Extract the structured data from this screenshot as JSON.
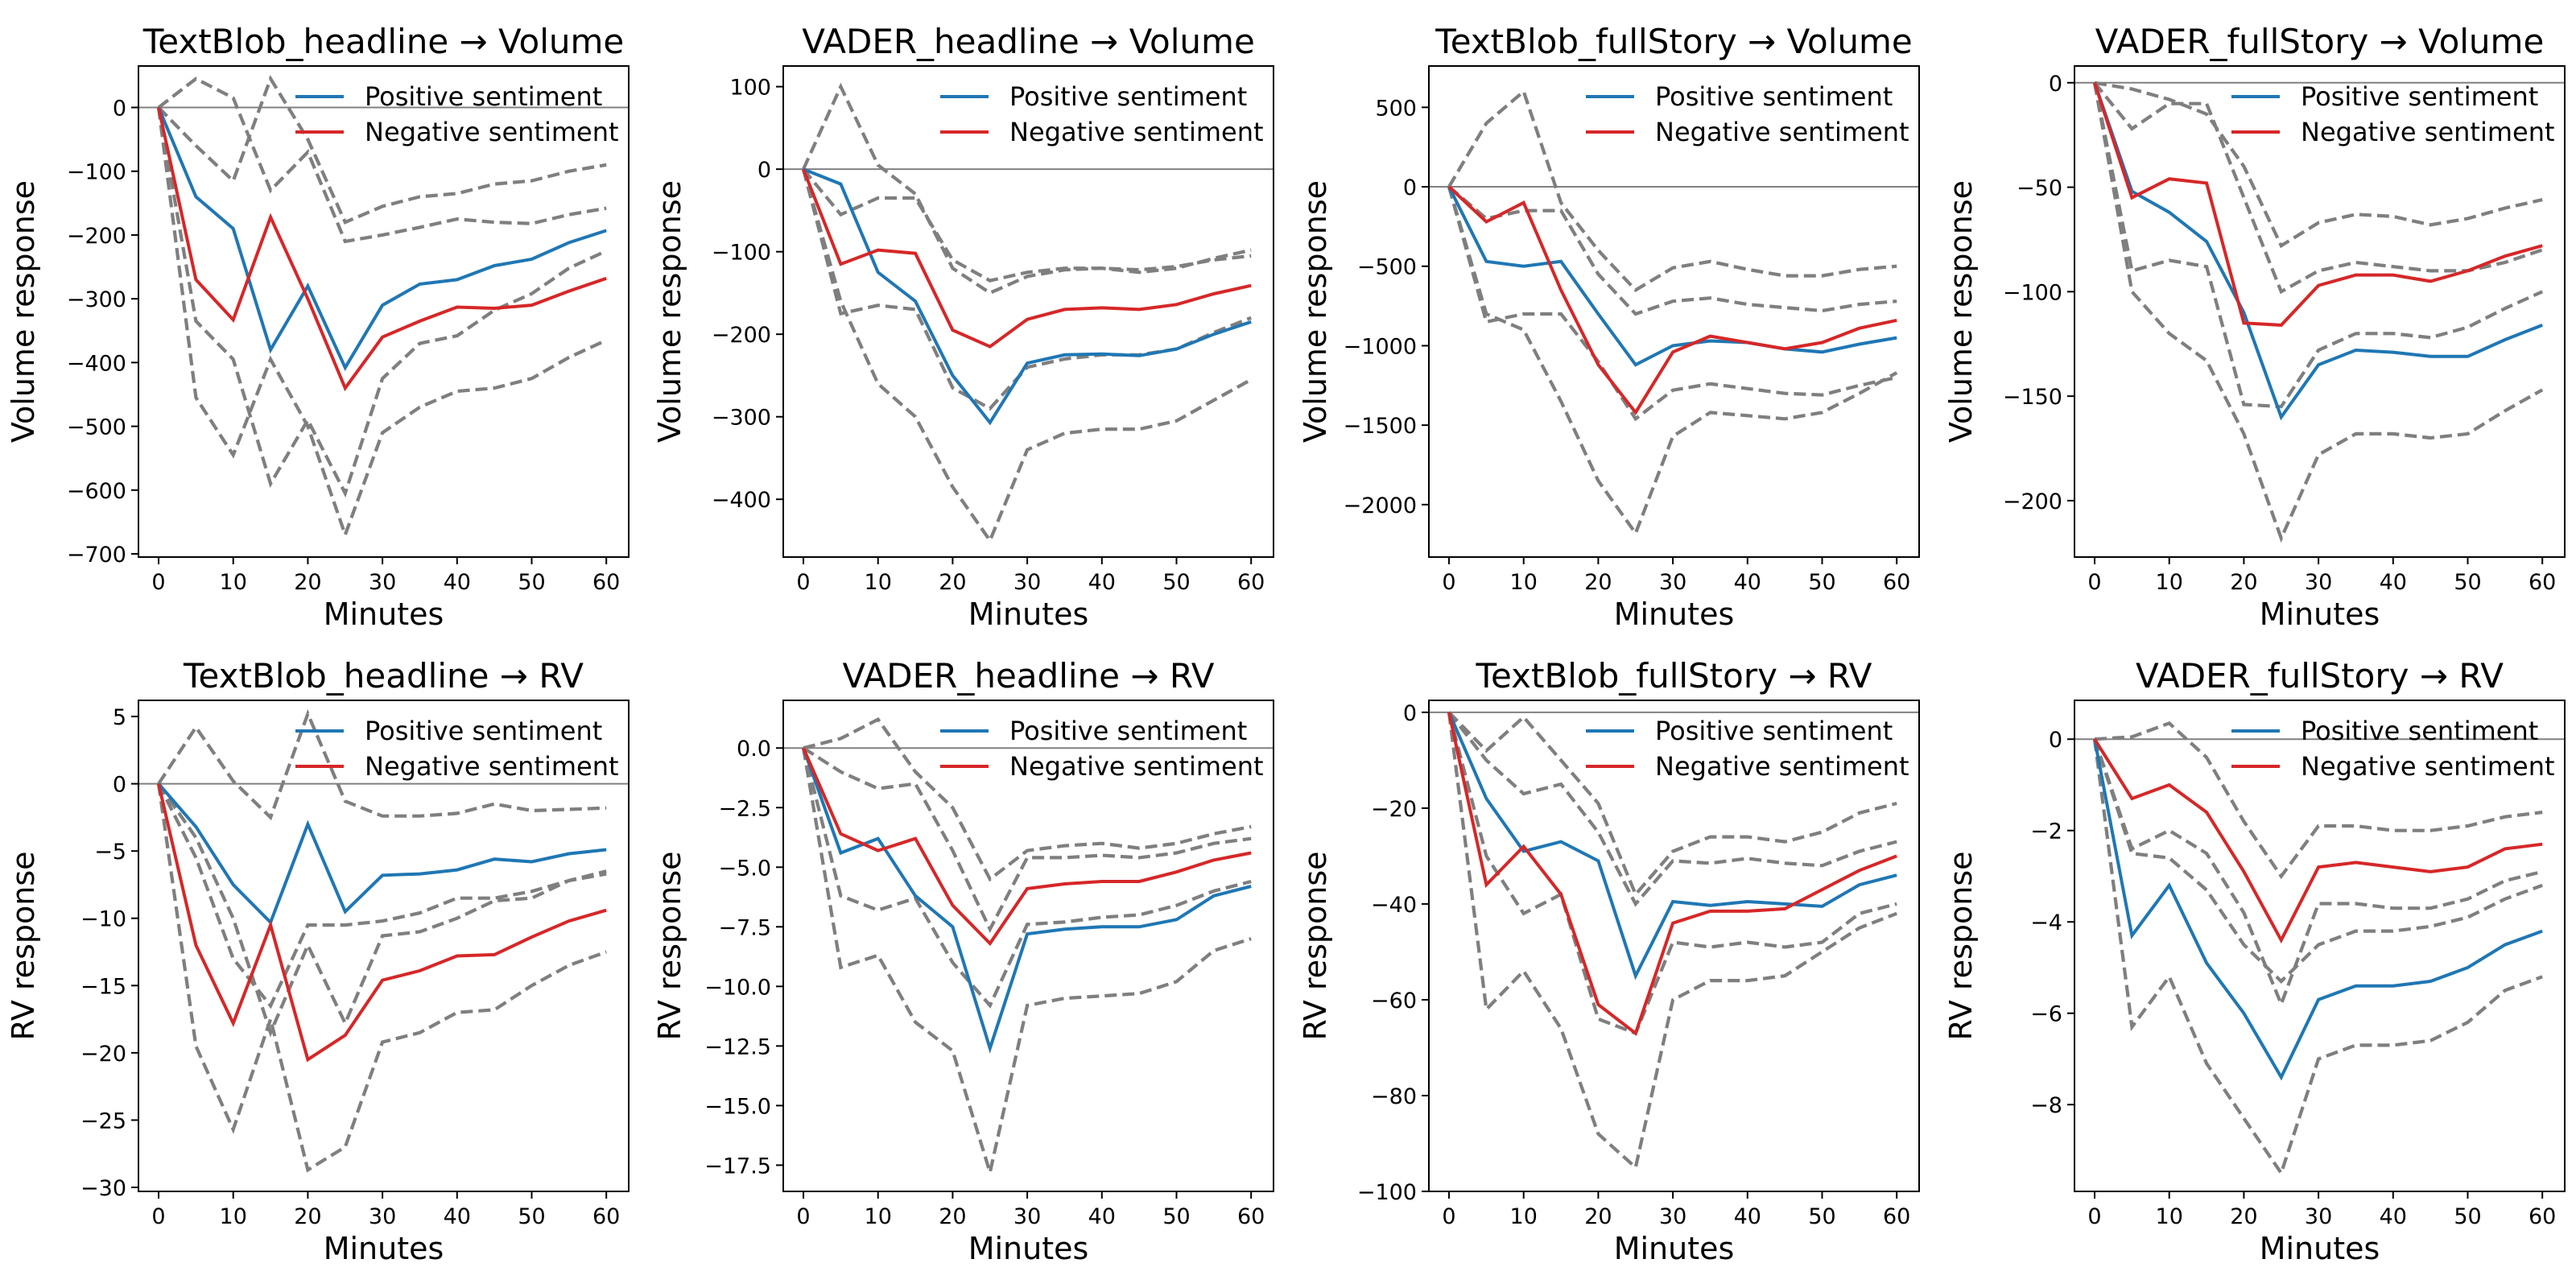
{
  "chart_data": [
    {
      "type": "line",
      "title": "TextBlob_headline → Volume",
      "xlabel": "Minutes",
      "ylabel": "Volume response",
      "xlim": [
        -2.7,
        63
      ],
      "ylim": [
        -705,
        65
      ],
      "xticks": [
        0,
        10,
        20,
        30,
        40,
        50,
        60
      ],
      "yticks": [
        0,
        -100,
        -200,
        -300,
        -400,
        -500,
        -600,
        -700
      ],
      "legend": "top-right",
      "zero_line": true,
      "x": [
        0,
        5,
        10,
        15,
        20,
        25,
        30,
        35,
        40,
        45,
        50,
        55,
        60
      ],
      "series": [
        {
          "name": "Positive sentiment",
          "color": "#1f77b4",
          "values": [
            0,
            -140,
            -190,
            -380,
            -280,
            -408,
            -310,
            -277,
            -270,
            -248,
            -238,
            -212,
            -193
          ]
        },
        {
          "name": "Negative sentiment",
          "color": "#d62728",
          "values": [
            0,
            -270,
            -333,
            -172,
            -300,
            -440,
            -360,
            -335,
            -313,
            -315,
            -310,
            -288,
            -268
          ]
        }
      ],
      "bands": [
        [
          0,
          45,
          15,
          -130,
          -70,
          -210,
          -200,
          -188,
          -175,
          -180,
          -182,
          -168,
          -158
        ],
        [
          0,
          -335,
          -395,
          -590,
          -490,
          -605,
          -425,
          -370,
          -358,
          -318,
          -292,
          -252,
          -225
        ],
        [
          0,
          -60,
          -115,
          45,
          -50,
          -180,
          -155,
          -140,
          -135,
          -120,
          -115,
          -100,
          -90
        ],
        [
          0,
          -455,
          -545,
          -395,
          -500,
          -670,
          -510,
          -470,
          -445,
          -440,
          -425,
          -392,
          -365
        ]
      ]
    },
    {
      "type": "line",
      "title": "VADER_headline → Volume",
      "xlabel": "Minutes",
      "ylabel": "Volume response",
      "xlim": [
        -2.7,
        63
      ],
      "ylim": [
        -470,
        125
      ],
      "xticks": [
        0,
        10,
        20,
        30,
        40,
        50,
        60
      ],
      "yticks": [
        100,
        0,
        -100,
        -200,
        -300,
        -400
      ],
      "legend": "top-right",
      "zero_line": true,
      "x": [
        0,
        5,
        10,
        15,
        20,
        25,
        30,
        35,
        40,
        45,
        50,
        55,
        60
      ],
      "series": [
        {
          "name": "Positive sentiment",
          "color": "#1f77b4",
          "values": [
            0,
            -18,
            -125,
            -160,
            -250,
            -307,
            -235,
            -225,
            -224,
            -226,
            -218,
            -200,
            -185
          ]
        },
        {
          "name": "Negative sentiment",
          "color": "#d62728",
          "values": [
            0,
            -115,
            -98,
            -102,
            -195,
            -215,
            -182,
            -170,
            -168,
            -170,
            -164,
            -151,
            -141
          ]
        }
      ],
      "bands": [
        [
          0,
          100,
          5,
          -30,
          -120,
          -150,
          -130,
          -122,
          -120,
          -125,
          -120,
          -108,
          -98
        ],
        [
          0,
          -55,
          -35,
          -35,
          -110,
          -135,
          -125,
          -120,
          -120,
          -122,
          -118,
          -110,
          -105
        ],
        [
          0,
          -175,
          -165,
          -170,
          -265,
          -290,
          -240,
          -230,
          -225,
          -225,
          -218,
          -198,
          -180
        ],
        [
          0,
          -160,
          -260,
          -300,
          -385,
          -450,
          -340,
          -320,
          -315,
          -315,
          -305,
          -280,
          -255
        ]
      ]
    },
    {
      "type": "line",
      "title": "TextBlob_fullStory → Volume",
      "xlabel": "Minutes",
      "ylabel": "Volume response",
      "xlim": [
        -2.7,
        63
      ],
      "ylim": [
        -2330,
        760
      ],
      "xticks": [
        0,
        10,
        20,
        30,
        40,
        50,
        60
      ],
      "yticks": [
        500,
        0,
        -500,
        -1000,
        -1500,
        -2000
      ],
      "legend": "top-right",
      "zero_line": true,
      "x": [
        0,
        5,
        10,
        15,
        20,
        25,
        30,
        35,
        40,
        45,
        50,
        55,
        60
      ],
      "series": [
        {
          "name": "Positive sentiment",
          "color": "#1f77b4",
          "values": [
            0,
            -470,
            -500,
            -470,
            -800,
            -1120,
            -1000,
            -970,
            -980,
            -1020,
            -1040,
            -990,
            -950
          ]
        },
        {
          "name": "Negative sentiment",
          "color": "#d62728",
          "values": [
            0,
            -220,
            -100,
            -650,
            -1120,
            -1420,
            -1040,
            -940,
            -980,
            -1020,
            -980,
            -890,
            -840
          ]
        }
      ],
      "bands": [
        [
          0,
          400,
          600,
          -100,
          -400,
          -650,
          -510,
          -470,
          -520,
          -560,
          -560,
          -520,
          -500
        ],
        [
          0,
          -200,
          -150,
          -150,
          -550,
          -800,
          -720,
          -700,
          -740,
          -760,
          -780,
          -740,
          -720
        ],
        [
          0,
          -800,
          -900,
          -1350,
          -1850,
          -2180,
          -1570,
          -1420,
          -1440,
          -1460,
          -1420,
          -1300,
          -1170
        ],
        [
          0,
          -850,
          -800,
          -800,
          -1100,
          -1460,
          -1280,
          -1240,
          -1270,
          -1300,
          -1310,
          -1250,
          -1200
        ]
      ]
    },
    {
      "type": "line",
      "title": "VADER_fullStory → Volume",
      "xlabel": "Minutes",
      "ylabel": "Volume response",
      "xlim": [
        -2.7,
        63
      ],
      "ylim": [
        -227,
        8
      ],
      "xticks": [
        0,
        10,
        20,
        30,
        40,
        50,
        60
      ],
      "yticks": [
        0,
        -50,
        -100,
        -150,
        -200
      ],
      "legend": "top-right",
      "zero_line": true,
      "x": [
        0,
        5,
        10,
        15,
        20,
        25,
        30,
        35,
        40,
        45,
        50,
        55,
        60
      ],
      "series": [
        {
          "name": "Positive sentiment",
          "color": "#1f77b4",
          "values": [
            0,
            -52,
            -62,
            -76,
            -110,
            -160,
            -135,
            -128,
            -129,
            -131,
            -131,
            -123,
            -116
          ]
        },
        {
          "name": "Negative sentiment",
          "color": "#d62728",
          "values": [
            0,
            -55,
            -46,
            -48,
            -115,
            -116,
            -97,
            -92,
            -92,
            -95,
            -90,
            -83,
            -78
          ]
        }
      ],
      "bands": [
        [
          0,
          -3,
          -8,
          -15,
          -40,
          -78,
          -67,
          -63,
          -64,
          -68,
          -65,
          -60,
          -56
        ],
        [
          0,
          -22,
          -10,
          -10,
          -55,
          -100,
          -90,
          -86,
          -88,
          -90,
          -90,
          -86,
          -80
        ],
        [
          0,
          -90,
          -85,
          -88,
          -154,
          -155,
          -128,
          -120,
          -120,
          -122,
          -117,
          -108,
          -100
        ],
        [
          0,
          -100,
          -120,
          -133,
          -168,
          -218,
          -178,
          -168,
          -168,
          -170,
          -168,
          -157,
          -147
        ]
      ]
    },
    {
      "type": "line",
      "title": "TextBlob_headline → RV",
      "xlabel": "Minutes",
      "ylabel": "RV response",
      "xlim": [
        -2.7,
        63
      ],
      "ylim": [
        -30.3,
        6.2
      ],
      "xticks": [
        0,
        10,
        20,
        30,
        40,
        50,
        60
      ],
      "yticks": [
        5,
        0,
        -5,
        -10,
        -15,
        -20,
        -25,
        -30
      ],
      "legend": "top-right",
      "zero_line": true,
      "x": [
        0,
        5,
        10,
        15,
        20,
        25,
        30,
        35,
        40,
        45,
        50,
        55,
        60
      ],
      "series": [
        {
          "name": "Positive sentiment",
          "color": "#1f77b4",
          "values": [
            0,
            -3.2,
            -7.5,
            -10.3,
            -3.0,
            -9.5,
            -6.8,
            -6.7,
            -6.4,
            -5.6,
            -5.8,
            -5.2,
            -4.9
          ]
        },
        {
          "name": "Negative sentiment",
          "color": "#d62728",
          "values": [
            0,
            -12,
            -17.8,
            -10.5,
            -20.5,
            -18.7,
            -14.6,
            -13.9,
            -12.8,
            -12.7,
            -11.4,
            -10.2,
            -9.4
          ]
        }
      ],
      "bands": [
        [
          0,
          4.2,
          0.2,
          -2.5,
          5.2,
          -1.3,
          -2.4,
          -2.4,
          -2.2,
          -1.5,
          -2.0,
          -1.9,
          -1.8
        ],
        [
          0,
          -4.0,
          -10.0,
          -18.5,
          -12.0,
          -17.8,
          -11.3,
          -11.0,
          -10.0,
          -8.7,
          -8.5,
          -7.2,
          -6.5
        ],
        [
          0,
          -5.5,
          -13.0,
          -16.5,
          -10.5,
          -10.5,
          -10.2,
          -9.6,
          -8.5,
          -8.5,
          -8.0,
          -7.2,
          -6.7
        ],
        [
          0,
          -19.5,
          -25.7,
          -17.5,
          -28.7,
          -27.0,
          -19.2,
          -18.5,
          -17.0,
          -16.8,
          -15.0,
          -13.5,
          -12.5
        ]
      ]
    },
    {
      "type": "line",
      "title": "VADER_headline → RV",
      "xlabel": "Minutes",
      "ylabel": "RV response",
      "xlim": [
        -2.7,
        63
      ],
      "ylim": [
        -18.6,
        2.0
      ],
      "xticks": [
        0,
        10,
        20,
        30,
        40,
        50,
        60
      ],
      "yticks": [
        0.0,
        -2.5,
        -5.0,
        -7.5,
        -10.0,
        -12.5,
        -15.0,
        -17.5
      ],
      "legend": "top-right",
      "zero_line": true,
      "x": [
        0,
        5,
        10,
        15,
        20,
        25,
        30,
        35,
        40,
        45,
        50,
        55,
        60
      ],
      "series": [
        {
          "name": "Positive sentiment",
          "color": "#1f77b4",
          "values": [
            0,
            -4.4,
            -3.8,
            -6.2,
            -7.5,
            -12.6,
            -7.8,
            -7.6,
            -7.5,
            -7.5,
            -7.2,
            -6.2,
            -5.8
          ]
        },
        {
          "name": "Negative sentiment",
          "color": "#d62728",
          "values": [
            0,
            -3.6,
            -4.3,
            -3.8,
            -6.6,
            -8.2,
            -5.9,
            -5.7,
            -5.6,
            -5.6,
            -5.2,
            -4.7,
            -4.4
          ]
        }
      ],
      "bands": [
        [
          0,
          0.4,
          1.2,
          -1.0,
          -2.5,
          -5.5,
          -4.3,
          -4.1,
          -4.0,
          -4.2,
          -4.0,
          -3.6,
          -3.3
        ],
        [
          0,
          -1.0,
          -1.7,
          -1.5,
          -4.3,
          -7.6,
          -4.6,
          -4.6,
          -4.5,
          -4.6,
          -4.4,
          -4.0,
          -3.8
        ],
        [
          0,
          -6.2,
          -6.8,
          -6.3,
          -9.0,
          -10.8,
          -7.4,
          -7.3,
          -7.1,
          -7.0,
          -6.6,
          -6.0,
          -5.6
        ],
        [
          0,
          -9.2,
          -8.7,
          -11.5,
          -12.7,
          -17.8,
          -10.8,
          -10.5,
          -10.4,
          -10.3,
          -9.8,
          -8.5,
          -8.0
        ]
      ]
    },
    {
      "type": "line",
      "title": "TextBlob_fullStory → RV",
      "xlabel": "Minutes",
      "ylabel": "RV response",
      "xlim": [
        -2.7,
        63
      ],
      "ylim": [
        -100,
        2.5
      ],
      "xticks": [
        0,
        10,
        20,
        30,
        40,
        50,
        60
      ],
      "yticks": [
        0,
        -20,
        -40,
        -60,
        -80,
        -100
      ],
      "legend": "top-right",
      "zero_line": true,
      "x": [
        0,
        5,
        10,
        15,
        20,
        25,
        30,
        35,
        40,
        45,
        50,
        55,
        60
      ],
      "series": [
        {
          "name": "Positive sentiment",
          "color": "#1f77b4",
          "values": [
            0,
            -18,
            -29,
            -27,
            -31,
            -55,
            -39.5,
            -40.3,
            -39.5,
            -40,
            -40.5,
            -36,
            -34
          ]
        },
        {
          "name": "Negative sentiment",
          "color": "#d62728",
          "values": [
            0,
            -36,
            -28,
            -38,
            -61,
            -67,
            -44,
            -41.5,
            -41.5,
            -41,
            -37,
            -33,
            -30
          ]
        }
      ],
      "bands": [
        [
          0,
          -8,
          -1,
          -10,
          -19,
          -38,
          -29,
          -26,
          -26,
          -27,
          -25,
          -21,
          -19
        ],
        [
          0,
          -10,
          -17,
          -15,
          -25,
          -40,
          -31,
          -31.5,
          -30.5,
          -31.5,
          -32,
          -29,
          -27
        ],
        [
          0,
          -30,
          -42,
          -38,
          -64,
          -67,
          -48,
          -49,
          -48,
          -49,
          -48,
          -42,
          -40
        ],
        [
          0,
          -62,
          -54,
          -66,
          -88,
          -95,
          -60,
          -56,
          -56,
          -55,
          -50,
          -45,
          -42
        ]
      ]
    },
    {
      "type": "line",
      "title": "VADER_fullStory → RV",
      "xlabel": "Minutes",
      "ylabel": "RV response",
      "xlim": [
        -2.7,
        63
      ],
      "ylim": [
        -9.9,
        0.85
      ],
      "xticks": [
        0,
        10,
        20,
        30,
        40,
        50,
        60
      ],
      "yticks": [
        0,
        -2,
        -4,
        -6,
        -8
      ],
      "legend": "top-right",
      "zero_line": true,
      "x": [
        0,
        5,
        10,
        15,
        20,
        25,
        30,
        35,
        40,
        45,
        50,
        55,
        60
      ],
      "series": [
        {
          "name": "Positive sentiment",
          "color": "#1f77b4",
          "values": [
            0,
            -4.3,
            -3.2,
            -4.9,
            -6.0,
            -7.4,
            -5.7,
            -5.4,
            -5.4,
            -5.3,
            -5.0,
            -4.5,
            -4.2
          ]
        },
        {
          "name": "Negative sentiment",
          "color": "#d62728",
          "values": [
            0,
            -1.3,
            -1.0,
            -1.6,
            -2.9,
            -4.4,
            -2.8,
            -2.7,
            -2.8,
            -2.9,
            -2.8,
            -2.4,
            -2.3
          ]
        }
      ],
      "bands": [
        [
          0,
          0.05,
          0.35,
          -0.4,
          -1.8,
          -3.0,
          -1.9,
          -1.9,
          -2.0,
          -2.0,
          -1.9,
          -1.7,
          -1.6
        ],
        [
          0,
          -2.4,
          -2.0,
          -2.5,
          -3.8,
          -5.8,
          -3.6,
          -3.6,
          -3.7,
          -3.7,
          -3.5,
          -3.1,
          -2.9
        ],
        [
          0,
          -2.5,
          -2.6,
          -3.3,
          -4.5,
          -5.3,
          -4.5,
          -4.2,
          -4.2,
          -4.1,
          -3.9,
          -3.5,
          -3.2
        ],
        [
          0,
          -6.3,
          -5.2,
          -7.1,
          -8.3,
          -9.5,
          -7.0,
          -6.7,
          -6.7,
          -6.6,
          -6.2,
          -5.5,
          -5.2
        ]
      ]
    }
  ]
}
